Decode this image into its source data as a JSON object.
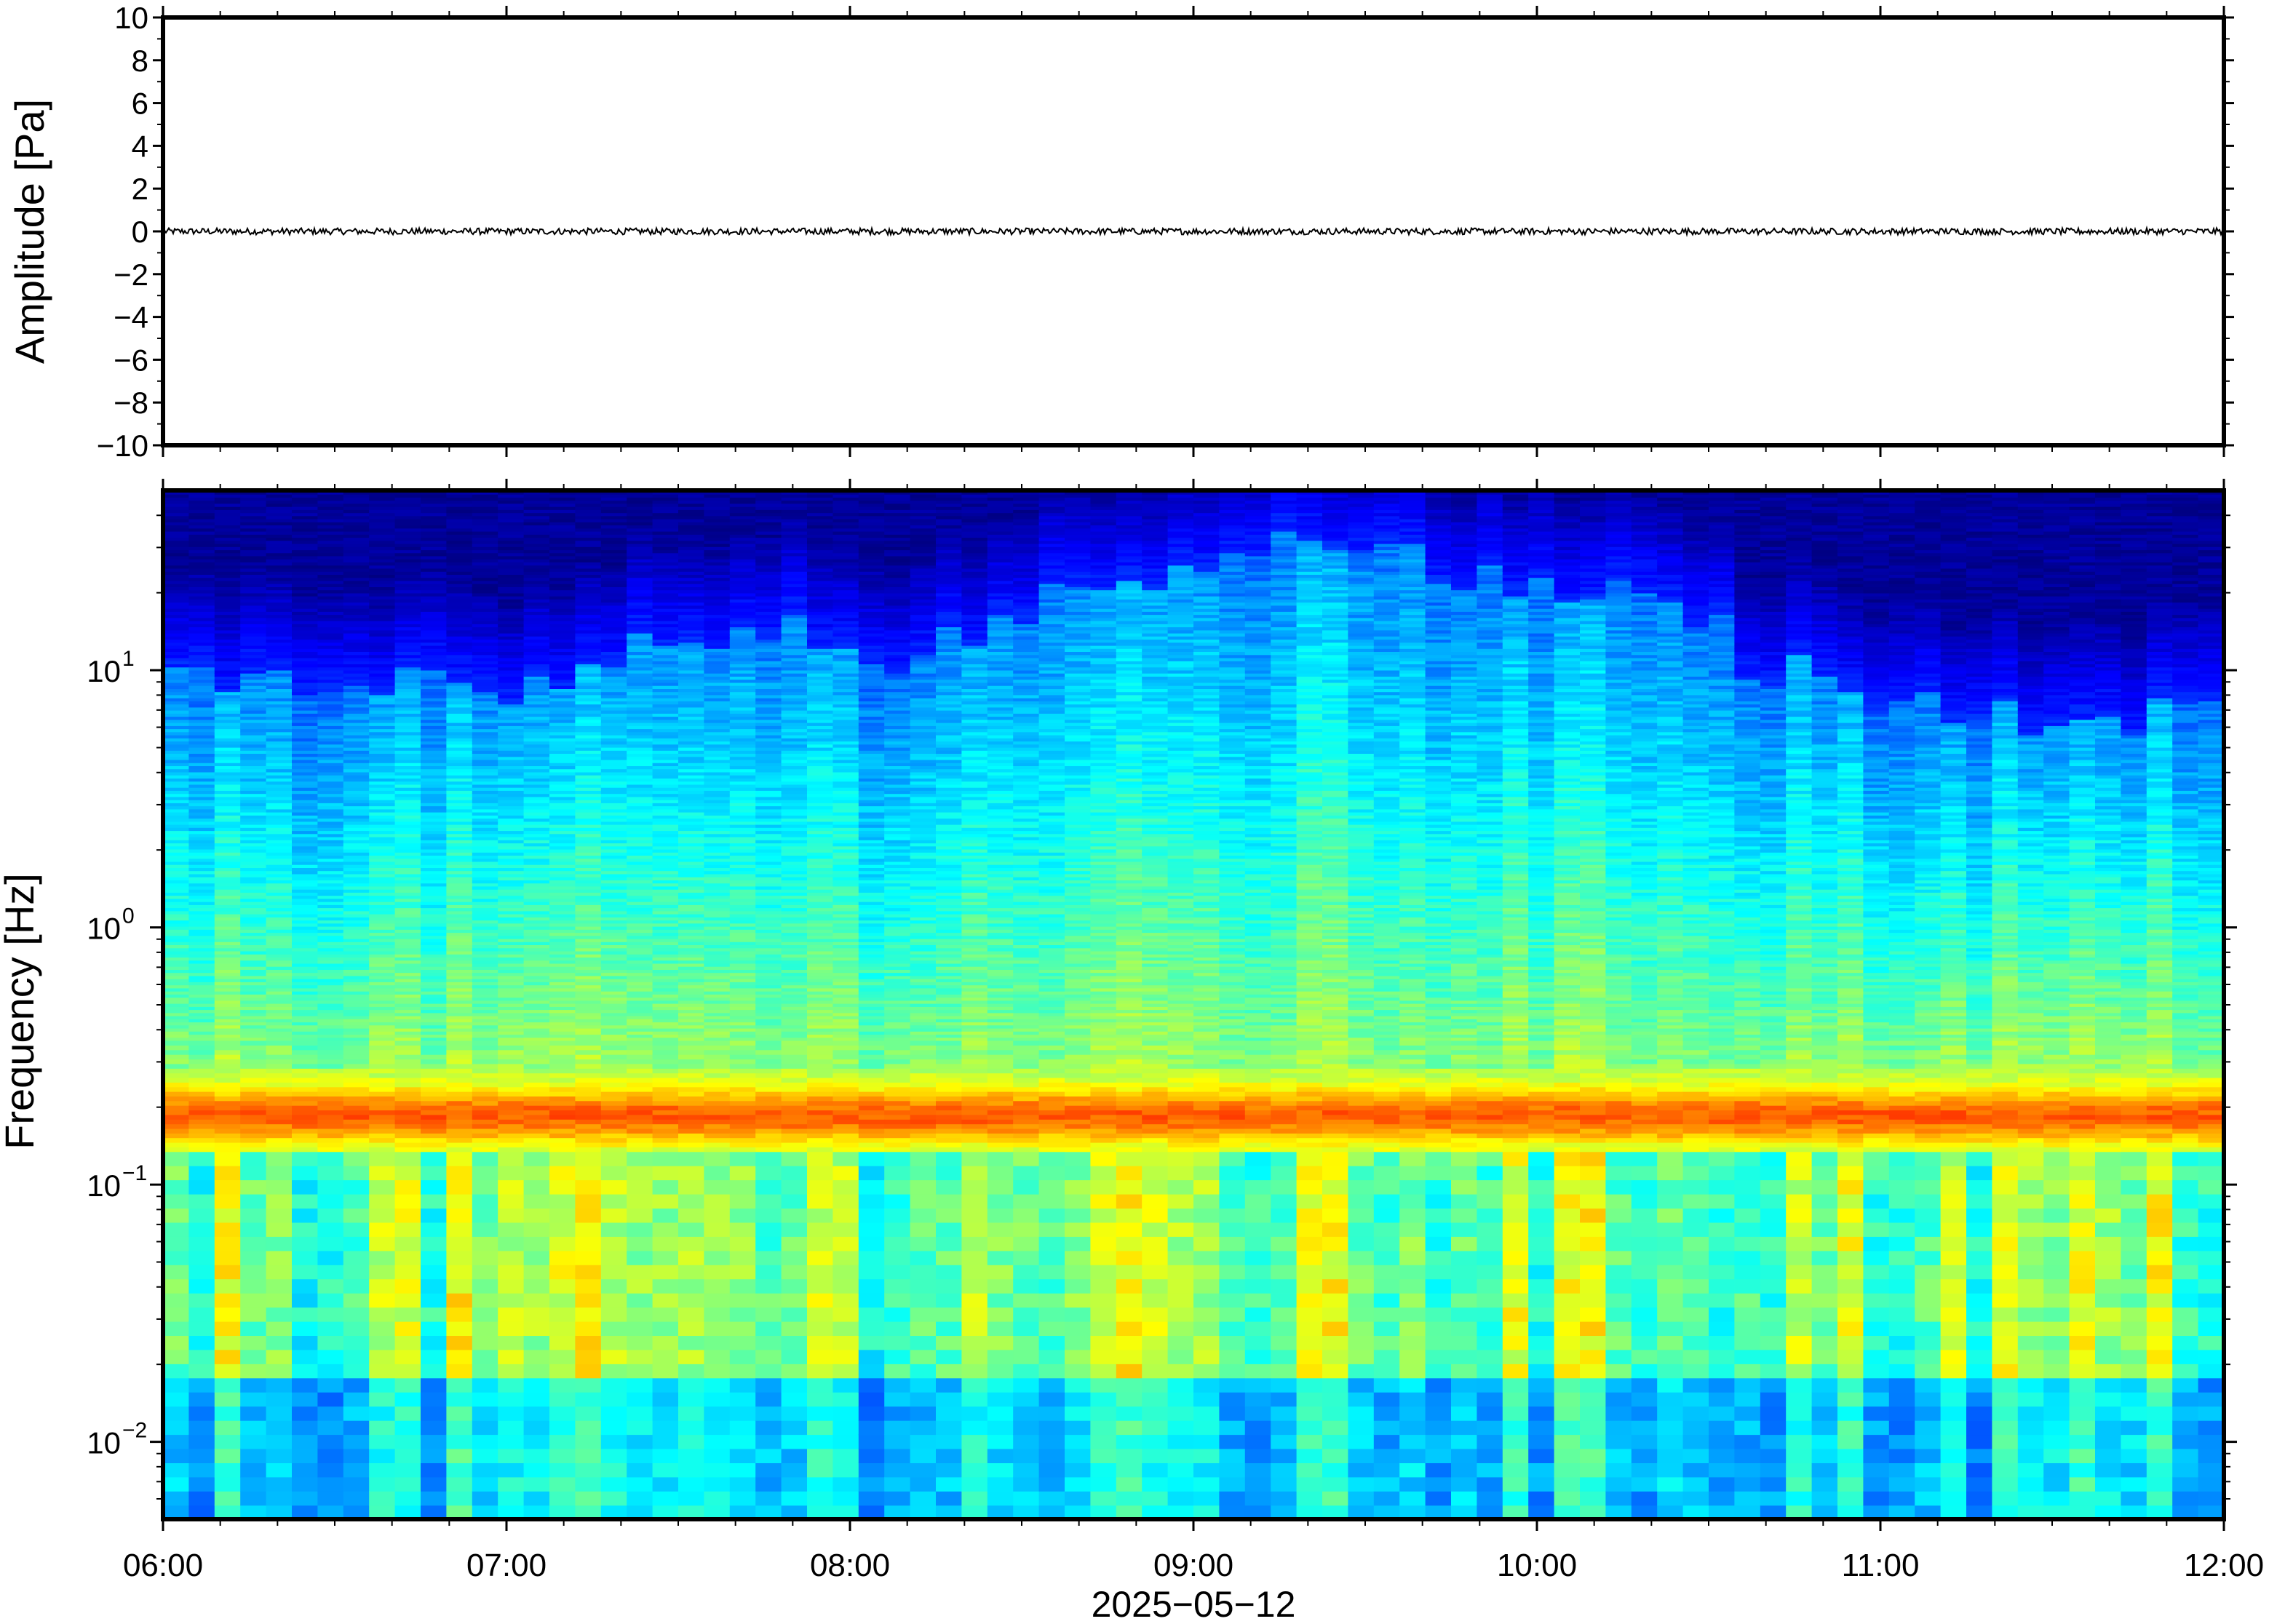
{
  "chart_data": [
    {
      "type": "line",
      "panel": "waveform",
      "ylabel": "Amplitude [Pa]",
      "ylim": [
        -10,
        10
      ],
      "yticks": [
        10,
        8,
        6,
        4,
        2,
        0,
        -2,
        -4,
        -6,
        -8,
        -10
      ],
      "ytick_labels": [
        "10",
        "8",
        "6",
        "4",
        "2",
        "0",
        "−2",
        "−4",
        "−6",
        "−8",
        "−10"
      ],
      "xlim": [
        "06:00",
        "12:00"
      ],
      "series": [
        {
          "x": [
            "06:00",
            "07:00",
            "08:00",
            "09:00",
            "10:00",
            "11:00",
            "12:00"
          ],
          "y": [
            0,
            0,
            0,
            0,
            0,
            0,
            0
          ],
          "noise_amplitude": 0.15,
          "color": "#000000"
        }
      ]
    },
    {
      "type": "heatmap",
      "panel": "spectrogram",
      "ylabel": "Frequency [Hz]",
      "yscale": "log",
      "ylim": [
        0.005,
        50
      ],
      "yticks": [
        10,
        1,
        0.1,
        0.01
      ],
      "ytick_labels": [
        {
          "base": "10",
          "exp": "1"
        },
        {
          "base": "10",
          "exp": "0"
        },
        {
          "base": "10",
          "exp": "−1"
        },
        {
          "base": "10",
          "exp": "−2"
        }
      ],
      "xlabel": "2025−05−12",
      "xticks": [
        "06:00",
        "07:00",
        "08:00",
        "09:00",
        "10:00",
        "11:00",
        "12:00"
      ],
      "colormap": "jet",
      "colors": [
        "#00007f",
        "#0000ff",
        "#0080ff",
        "#00ffff",
        "#80ff80",
        "#ffff00",
        "#ff8000",
        "#ff0000"
      ],
      "notes_visible": {
        "microseism_band_hz": [
          0.13,
          0.3
        ],
        "high_freq_cutoff_peak": "09:00–09:45"
      }
    }
  ]
}
